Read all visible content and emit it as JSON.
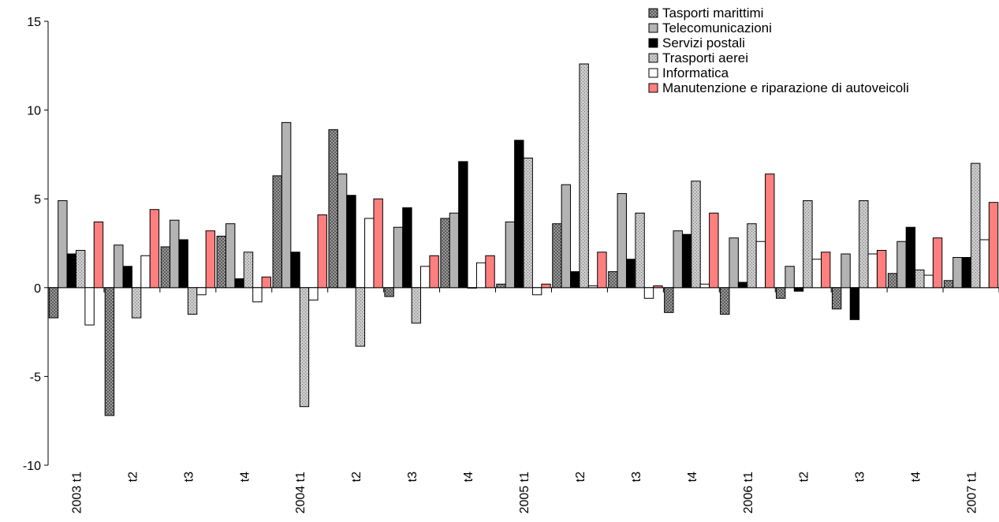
{
  "chart_data": {
    "type": "bar",
    "categories": [
      "2003 t1",
      "t2",
      "t3",
      "t4",
      "2004 t1",
      "t2",
      "t3",
      "t4",
      "2005 t1",
      "t2",
      "t3",
      "t4",
      "2006 t1",
      "t2",
      "t3",
      "t4",
      "2007 t1"
    ],
    "ylim": [
      -10,
      15
    ],
    "yticks": [
      -10,
      -5,
      0,
      5,
      10,
      15
    ],
    "ytick_labels": [
      "-10",
      "-5",
      "0",
      "5",
      "10",
      "15"
    ],
    "grid": false,
    "legend_position": "top-right",
    "series": [
      {
        "name": "Tasporti marittimi",
        "pattern": "crosshatch",
        "color": "#808080",
        "values": [
          -1.7,
          -7.2,
          2.3,
          2.9,
          6.3,
          8.9,
          -0.5,
          3.9,
          0.2,
          3.6,
          0.9,
          -1.4,
          -1.5,
          -0.6,
          -1.2,
          0.8,
          0.4
        ]
      },
      {
        "name": "Telecomunicazioni",
        "pattern": "solid",
        "color": "#b3b3b3",
        "values": [
          4.9,
          2.4,
          3.8,
          3.6,
          9.3,
          6.4,
          3.4,
          4.2,
          3.7,
          5.8,
          5.3,
          3.2,
          2.8,
          1.2,
          1.9,
          2.6,
          1.7
        ]
      },
      {
        "name": "Servizi postali",
        "pattern": "solid",
        "color": "#000000",
        "values": [
          1.9,
          1.2,
          2.7,
          0.5,
          2.0,
          5.2,
          4.5,
          7.1,
          8.3,
          0.9,
          1.6,
          3.0,
          0.3,
          -0.2,
          -1.8,
          3.4,
          1.7
        ]
      },
      {
        "name": "Trasporti aerei",
        "pattern": "dotted",
        "color": "#c0c0c0",
        "values": [
          2.1,
          -1.7,
          -1.5,
          2.0,
          -6.7,
          -3.3,
          -2.0,
          0.0,
          7.3,
          12.6,
          4.2,
          6.0,
          3.6,
          4.9,
          4.9,
          1.0,
          7.0
        ]
      },
      {
        "name": "Informatica",
        "pattern": "solid",
        "color": "#ffffff",
        "values": [
          -2.1,
          1.8,
          -0.4,
          -0.8,
          -0.7,
          3.9,
          1.2,
          1.4,
          -0.4,
          0.1,
          -0.6,
          0.2,
          2.6,
          1.6,
          1.9,
          0.7,
          2.7
        ]
      },
      {
        "name": "Manutenzione e riparazione di autoveicoli",
        "pattern": "solid",
        "color": "#ff7f7f",
        "values": [
          3.7,
          4.4,
          3.2,
          0.6,
          4.1,
          5.0,
          1.8,
          1.8,
          0.2,
          2.0,
          0.1,
          4.2,
          6.4,
          2.0,
          2.1,
          2.8,
          4.8
        ]
      }
    ]
  }
}
